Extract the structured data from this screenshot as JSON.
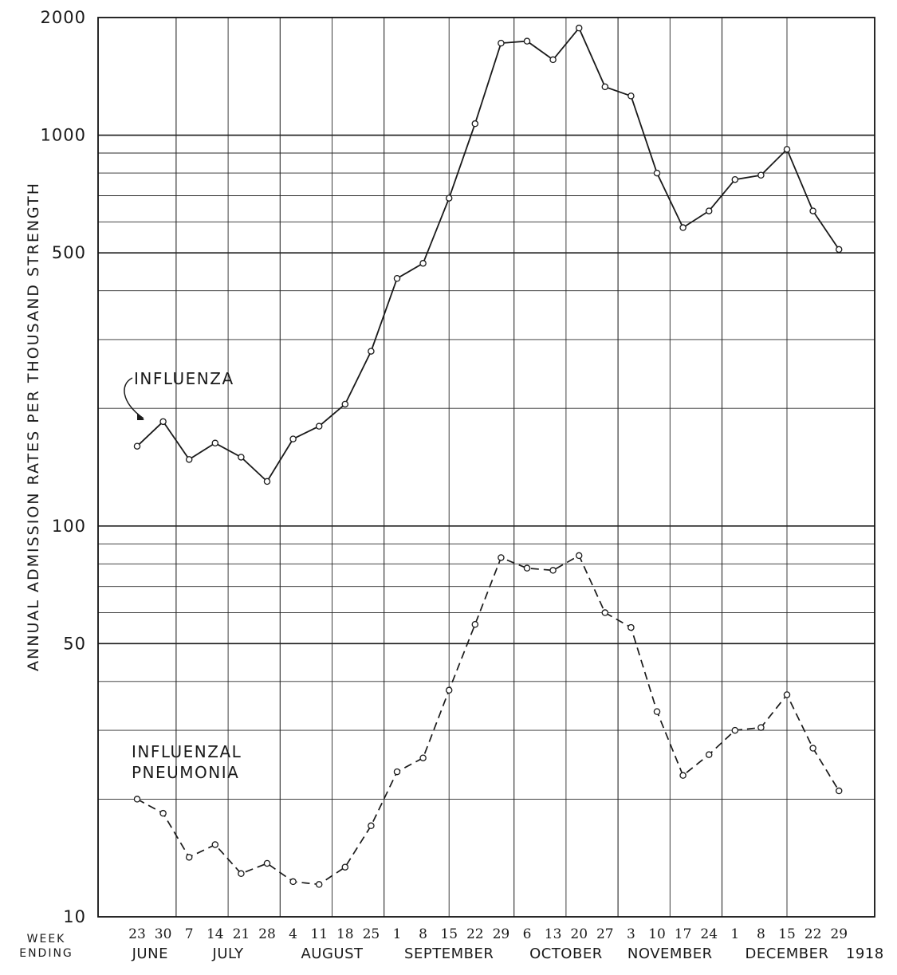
{
  "chart_data": {
    "type": "line",
    "ylabel": "ANNUAL ADMISSION RATES PER THOUSAND STRENGTH",
    "yscale": "log",
    "ylim": [
      10,
      2000
    ],
    "y_ticks": [
      {
        "value": 10,
        "label": "10"
      },
      {
        "value": 50,
        "label": "50"
      },
      {
        "value": 100,
        "label": "100"
      },
      {
        "value": 500,
        "label": "500"
      },
      {
        "value": 1000,
        "label": "1000"
      },
      {
        "value": 2000,
        "label": "2000"
      }
    ],
    "week_label_1": "WEEK",
    "week_label_2": "ENDING",
    "x_ticks": [
      "23",
      "30",
      "7",
      "14",
      "21",
      "28",
      "4",
      "11",
      "18",
      "25",
      "1",
      "8",
      "15",
      "22",
      "29",
      "6",
      "13",
      "20",
      "27",
      "3",
      "10",
      "17",
      "24",
      "1",
      "8",
      "15",
      "22",
      "29"
    ],
    "months": [
      {
        "label": "JUNE",
        "week_index": 0.5
      },
      {
        "label": "JULY",
        "week_index": 3.5
      },
      {
        "label": "AUGUST",
        "week_index": 7.5
      },
      {
        "label": "SEPTEMBER",
        "week_index": 12
      },
      {
        "label": "OCTOBER",
        "week_index": 16.5
      },
      {
        "label": "NOVEMBER",
        "week_index": 20.5
      },
      {
        "label": "DECEMBER",
        "week_index": 25
      },
      {
        "label": "1918",
        "week_index": 28
      }
    ],
    "grid": true,
    "series": [
      {
        "name": "INFLUENZA",
        "style": "solid",
        "values": [
          160,
          185,
          148,
          163,
          150,
          130,
          167,
          180,
          205,
          280,
          430,
          470,
          690,
          1070,
          1720,
          1740,
          1560,
          1880,
          1330,
          1260,
          800,
          580,
          640,
          770,
          790,
          920,
          640,
          510
        ]
      },
      {
        "name": "INFLUENZAL PNEUMONIA",
        "style": "dashed",
        "values": [
          20,
          18.4,
          14.2,
          15.3,
          12.9,
          13.7,
          12.3,
          12.1,
          13.4,
          17.1,
          23.5,
          25.5,
          38,
          56,
          83,
          78,
          77,
          84,
          60,
          55,
          33.5,
          23,
          26,
          30,
          30.5,
          37,
          27,
          21
        ]
      }
    ]
  }
}
